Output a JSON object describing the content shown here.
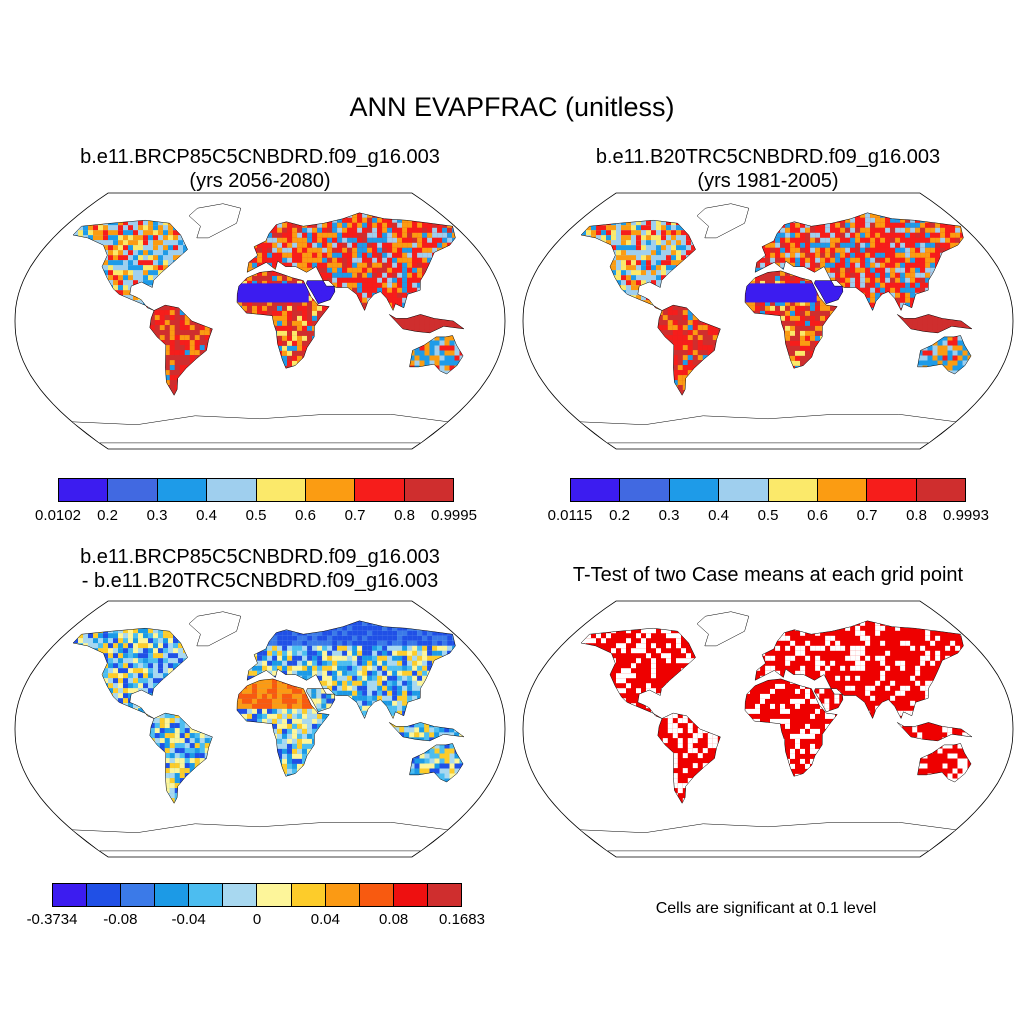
{
  "main_title": "ANN EVAPFRAC (unitless)",
  "panels": {
    "top_left": {
      "title_line1": "b.e11.BRCP85C5CNBDRD.f09_g16.003",
      "title_line2": "(yrs 2056-2080)"
    },
    "top_right": {
      "title_line1": "b.e11.B20TRC5CNBDRD.f09_g16.003",
      "title_line2": "(yrs 1981-2005)"
    },
    "bottom_left": {
      "title_line1": "b.e11.BRCP85C5CNBDRD.f09_g16.003",
      "title_line2": "- b.e11.B20TRC5CNBDRD.f09_g16.003"
    },
    "bottom_right": {
      "title_line1": "T-Test of two Case means at each grid point",
      "note": "Cells are significant at 0.1 level"
    }
  },
  "colorbars": {
    "top_left": {
      "labels": [
        "0.0102",
        "0.2",
        "0.3",
        "0.4",
        "0.5",
        "0.6",
        "0.7",
        "0.8",
        "0.9995"
      ],
      "colors": [
        "#3c1cf0",
        "#4169e1",
        "#1e9be8",
        "#9fcfee",
        "#fbe96a",
        "#fb9c12",
        "#f61d1b",
        "#cf2e2e"
      ]
    },
    "top_right": {
      "labels": [
        "0.0115",
        "0.2",
        "0.3",
        "0.4",
        "0.5",
        "0.6",
        "0.7",
        "0.8",
        "0.9993"
      ],
      "colors": [
        "#3c1cf0",
        "#4169e1",
        "#1e9be8",
        "#9fcfee",
        "#fbe96a",
        "#fb9c12",
        "#f61d1b",
        "#cf2e2e"
      ]
    },
    "bottom_left": {
      "labels": [
        "-0.3734",
        "-0.08",
        "-0.04",
        "0",
        "0.04",
        "0.08",
        "0.1683"
      ],
      "colors": [
        "#3c1cf0",
        "#2050e6",
        "#3b7ae8",
        "#1c9ae6",
        "#4cbdf0",
        "#a8d8f0",
        "#fdf59a",
        "#fdcc2a",
        "#fb9a14",
        "#f85a10",
        "#ee1010",
        "#cf2e2e"
      ]
    }
  },
  "significance_color": "#ee0000"
}
